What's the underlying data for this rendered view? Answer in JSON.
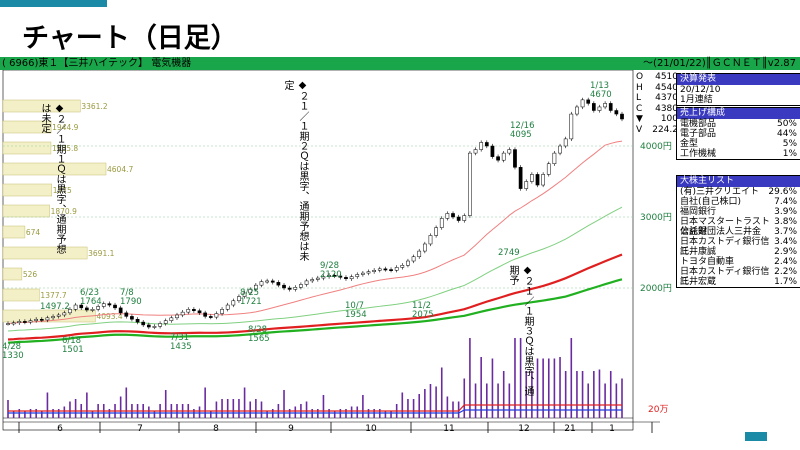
{
  "slide": {
    "title": "チャート（日足）"
  },
  "header": {
    "left": "( 6966)東１【三井ハイテック】 電気機器",
    "right": "〜(21/01/22)║ＧＣＮＥＴ║v2.87"
  },
  "ohlc": [
    {
      "k": "O",
      "v": "4510"
    },
    {
      "k": "H",
      "v": "4540"
    },
    {
      "k": "L",
      "v": "4370"
    },
    {
      "k": "C",
      "v": "4380"
    },
    {
      "k": "▼",
      "v": "100"
    },
    {
      "k": "V",
      "v": "224.2"
    }
  ],
  "info": {
    "kessan_header": "決算発表",
    "kessan_date": "20/12/10",
    "kessan_type": "1月連結",
    "sales_header": "売上げ構成",
    "sales": [
      {
        "name": "電機部品",
        "pct": "50%"
      },
      {
        "name": "電子部品",
        "pct": "44%"
      },
      {
        "name": "金型",
        "pct": "5%"
      },
      {
        "name": "工作機械",
        "pct": "1%"
      }
    ],
    "holders_header": "大株主リスト",
    "holders": [
      {
        "name": "(有)三井クリエイト",
        "pct": "29.6%"
      },
      {
        "name": "自社(自己株口)",
        "pct": "7.4%"
      },
      {
        "name": "福岡銀行",
        "pct": "3.9%"
      },
      {
        "name": "日本マスタートラスト信託銀",
        "pct": "3.8%"
      },
      {
        "name": "公益財団法人三井金",
        "pct": "3.7%"
      },
      {
        "name": "日本カストディ銀行信託",
        "pct": "3.4%"
      },
      {
        "name": "三井康誠",
        "pct": "2.9%"
      },
      {
        "name": "トヨタ自動車",
        "pct": "2.4%"
      },
      {
        "name": "日本カストディ銀行信託",
        "pct": "2.2%"
      },
      {
        "name": "三井宏蔵",
        "pct": "1.7%"
      }
    ]
  },
  "annotations": {
    "note_q1": "◆２／１期１Ｑは黒字、通期予想は未定",
    "note_q2": "◆２１／１期２Ｑは黒字、通期予想は未定",
    "note_q3": "◆２１／１期３Ｑは黒字、通期予"
  },
  "chart_data": {
    "type": "candlestick",
    "y_ticks": [
      "4000円",
      "3000円",
      "2000円"
    ],
    "volume_tick": "20万",
    "x_months": [
      "6",
      "7",
      "8",
      "9",
      "10",
      "11",
      "12",
      "21",
      "1"
    ],
    "price_labels": [
      {
        "date": "1/13",
        "price": "4670"
      },
      {
        "date": "12/16",
        "price": "4095"
      },
      {
        "date": "",
        "price": "2749"
      },
      {
        "date": "9/28",
        "price": "2120"
      },
      {
        "date": "10/7",
        "price": "1954"
      },
      {
        "date": "11/2",
        "price": "2075"
      },
      {
        "date": "8/25",
        "price": "1721"
      },
      {
        "date": "8/28",
        "price": "1565"
      },
      {
        "date": "7/31",
        "price": "1435"
      },
      {
        "date": "6/23",
        "price": "1764"
      },
      {
        "date": "7/8",
        "price": "1790"
      },
      {
        "date": "6/18",
        "price": "1501"
      },
      {
        "date": "4/28",
        "price": "1330"
      },
      {
        "date": "",
        "price": "1497.2"
      }
    ],
    "volume_profile": [
      {
        "price": 3361.2,
        "label": "3361.2"
      },
      {
        "price": 1944.9,
        "label": "1944.9"
      },
      {
        "price": 1935.8,
        "label": "1935.8"
      },
      {
        "price": 4604.7,
        "label": "4604.7"
      },
      {
        "price": 1975,
        "label": "1975"
      },
      {
        "price": 1870.9,
        "label": "1870.9"
      },
      {
        "price": 674,
        "label": "674"
      },
      {
        "price": 3691.1,
        "label": "3691.1"
      },
      {
        "price": 526,
        "label": "526"
      },
      {
        "price": 1377.7,
        "label": "1377.7"
      },
      {
        "price": 4093.4,
        "label": "4093.4"
      }
    ],
    "candles": [
      {
        "c": 1500
      },
      {
        "c": 1510
      },
      {
        "c": 1530
      },
      {
        "c": 1520
      },
      {
        "c": 1540
      },
      {
        "c": 1560
      },
      {
        "c": 1550
      },
      {
        "c": 1580
      },
      {
        "c": 1600
      },
      {
        "c": 1620
      },
      {
        "c": 1650
      },
      {
        "c": 1700
      },
      {
        "c": 1760
      },
      {
        "c": 1720
      },
      {
        "c": 1690
      },
      {
        "c": 1700
      },
      {
        "c": 1740
      },
      {
        "c": 1780
      },
      {
        "c": 1760
      },
      {
        "c": 1720
      },
      {
        "c": 1650
      },
      {
        "c": 1600
      },
      {
        "c": 1560
      },
      {
        "c": 1520
      },
      {
        "c": 1480
      },
      {
        "c": 1450
      },
      {
        "c": 1460
      },
      {
        "c": 1500
      },
      {
        "c": 1540
      },
      {
        "c": 1580
      },
      {
        "c": 1620
      },
      {
        "c": 1660
      },
      {
        "c": 1700
      },
      {
        "c": 1680
      },
      {
        "c": 1650
      },
      {
        "c": 1600
      },
      {
        "c": 1590
      },
      {
        "c": 1640
      },
      {
        "c": 1700
      },
      {
        "c": 1760
      },
      {
        "c": 1820
      },
      {
        "c": 1880
      },
      {
        "c": 1930
      },
      {
        "c": 1980
      },
      {
        "c": 2040
      },
      {
        "c": 2090
      },
      {
        "c": 2100
      },
      {
        "c": 2080
      },
      {
        "c": 2040
      },
      {
        "c": 2000
      },
      {
        "c": 1980
      },
      {
        "c": 2010
      },
      {
        "c": 2050
      },
      {
        "c": 2100
      },
      {
        "c": 2120
      },
      {
        "c": 2140
      },
      {
        "c": 2160
      },
      {
        "c": 2180
      },
      {
        "c": 2170
      },
      {
        "c": 2150
      },
      {
        "c": 2130
      },
      {
        "c": 2160
      },
      {
        "c": 2190
      },
      {
        "c": 2210
      },
      {
        "c": 2230
      },
      {
        "c": 2250
      },
      {
        "c": 2270
      },
      {
        "c": 2260
      },
      {
        "c": 2250
      },
      {
        "c": 2290
      },
      {
        "c": 2320
      },
      {
        "c": 2380
      },
      {
        "c": 2440
      },
      {
        "c": 2520
      },
      {
        "c": 2620
      },
      {
        "c": 2740
      },
      {
        "c": 2850
      },
      {
        "c": 2980
      },
      {
        "c": 3050
      },
      {
        "c": 3000
      },
      {
        "c": 2950
      },
      {
        "c": 3020
      },
      {
        "c": 3900
      },
      {
        "c": 3950
      },
      {
        "c": 4050
      },
      {
        "c": 4000
      },
      {
        "c": 3850
      },
      {
        "c": 3800
      },
      {
        "c": 3900
      },
      {
        "c": 3950
      },
      {
        "c": 3700
      },
      {
        "c": 3400
      },
      {
        "c": 3500
      },
      {
        "c": 3600
      },
      {
        "c": 3450
      },
      {
        "c": 3600
      },
      {
        "c": 3750
      },
      {
        "c": 3900
      },
      {
        "c": 4000
      },
      {
        "c": 4100
      },
      {
        "c": 4450
      },
      {
        "c": 4550
      },
      {
        "c": 4650
      },
      {
        "c": 4600
      },
      {
        "c": 4500
      },
      {
        "c": 4550
      },
      {
        "c": 4600
      },
      {
        "c": 4500
      },
      {
        "c": 4450
      },
      {
        "c": 4380
      }
    ]
  }
}
